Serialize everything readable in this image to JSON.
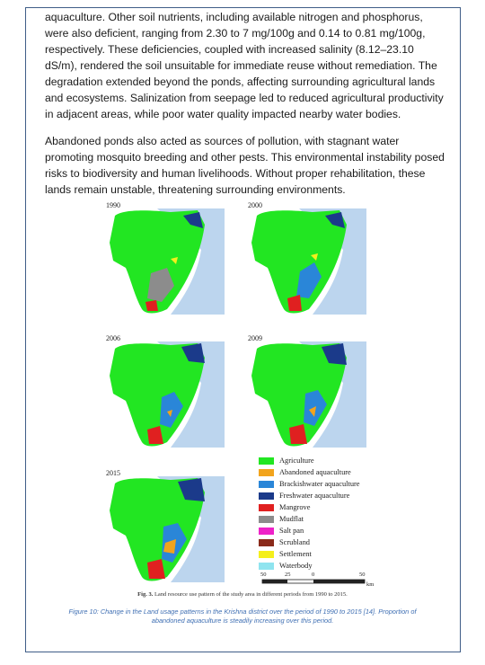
{
  "paragraphs": [
    "aquaculture. Other soil nutrients, including available nitrogen and phosphorus, were also deficient, ranging from 2.30 to 7 mg/100g and 0.14 to 0.81 mg/100g, respectively. These deficiencies, coupled with increased salinity (8.12–23.10 dS/m), rendered the soil unsuitable for immediate reuse without remediation. The degradation extended beyond the ponds, affecting surrounding agricultural lands and ecosystems. Salinization from seepage led to reduced agricultural productivity in adjacent areas, while poor water quality impacted nearby water bodies.",
    "Abandoned ponds also acted as sources of pollution, with stagnant water promoting mosquito breeding and other pests. This environmental instability posed risks to biodiversity and human livelihoods. Without proper rehabilitation, these lands remain unstable, threatening surrounding environments."
  ],
  "figure": {
    "panels": [
      "1990",
      "2000",
      "2006",
      "2009",
      "2015"
    ],
    "legend": [
      {
        "label": "Agriculture",
        "color": "#22e622"
      },
      {
        "label": "Abandoned aquaculture",
        "color": "#f2a41c"
      },
      {
        "label": "Brackishwater aquaculture",
        "color": "#2a86d8"
      },
      {
        "label": "Freshwater aquaculture",
        "color": "#1b3a8a"
      },
      {
        "label": "Mangrove",
        "color": "#e02020"
      },
      {
        "label": "Mudflat",
        "color": "#8c8c8c"
      },
      {
        "label": "Salt pan",
        "color": "#ee22c8"
      },
      {
        "label": "Scrubland",
        "color": "#8a2a1a"
      },
      {
        "label": "Settlement",
        "color": "#f4ef1c"
      },
      {
        "label": "Waterbody",
        "color": "#8fe4ef"
      }
    ],
    "scale": {
      "ticks": [
        "50",
        "25",
        "0",
        "50"
      ],
      "unit": "km"
    },
    "inner_caption_label": "Fig. 3.",
    "inner_caption_text": "Land resource use pattern of the study area in different periods from 1990 to 2015.",
    "caption": "Figure 10: Change in the Land usage patterns in the Krishna district over the period of 1990 to 2015 [14]. Proportion of abandoned aquaculture is steadily increasing over this period."
  }
}
